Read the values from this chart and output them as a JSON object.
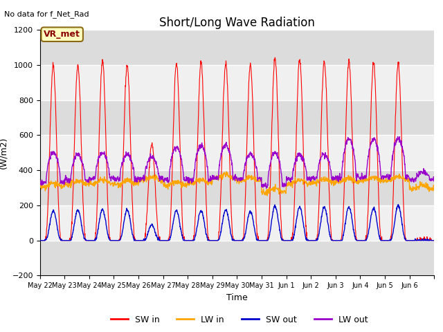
{
  "title": "Short/Long Wave Radiation",
  "xlabel": "Time",
  "ylabel": "(W/m2)",
  "top_left_text": "No data for f_Net_Rad",
  "legend_label_text": "VR_met",
  "ylim": [
    -200,
    1200
  ],
  "yticks": [
    -200,
    0,
    200,
    400,
    600,
    800,
    1000,
    1200
  ],
  "xtick_labels": [
    "May 22",
    "May 23",
    "May 24",
    "May 25",
    "May 26",
    "May 27",
    "May 28",
    "May 29",
    "May 30",
    "May 31",
    "Jun 1",
    "Jun 2",
    "Jun 3",
    "Jun 4",
    "Jun 5",
    "Jun 6"
  ],
  "colors": {
    "SW_in": "#ff0000",
    "LW_in": "#ffa500",
    "SW_out": "#0000cc",
    "LW_out": "#9900cc"
  },
  "legend_labels": [
    "SW in",
    "LW in",
    "SW out",
    "LW out"
  ],
  "background_color": "#ffffff",
  "plot_bg_color": "#dcdcdc",
  "grid_color": "#ffffff",
  "title_fontsize": 12,
  "axis_fontsize": 9,
  "n_days": 16,
  "hours_per_day": 24,
  "dt_hours": 0.25,
  "peak_heights_SW_in": [
    1000,
    1000,
    1020,
    1000,
    550,
    1010,
    1010,
    1010,
    1000,
    1035,
    1030,
    1025,
    1020,
    1010,
    1010,
    0
  ],
  "peak_heights_SW_out": [
    170,
    175,
    175,
    175,
    90,
    170,
    170,
    175,
    165,
    195,
    190,
    190,
    190,
    185,
    200,
    0
  ],
  "LW_in_base": [
    305,
    320,
    325,
    320,
    340,
    315,
    325,
    355,
    340,
    275,
    325,
    330,
    335,
    340,
    345,
    295
  ],
  "LW_out_base_night": [
    330,
    345,
    355,
    350,
    355,
    345,
    350,
    360,
    350,
    315,
    350,
    355,
    360,
    360,
    365,
    345
  ],
  "LW_out_peak_day": [
    500,
    490,
    500,
    490,
    475,
    530,
    540,
    545,
    495,
    500,
    490,
    490,
    580,
    575,
    580,
    390
  ]
}
